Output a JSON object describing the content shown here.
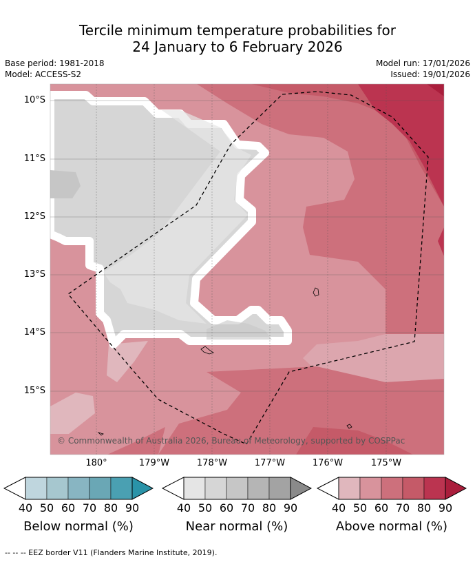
{
  "title_line1": "Tercile minimum temperature probabilities for",
  "title_line2": "24 January to 6 February 2026",
  "base_period": "Base period: 1981-2018",
  "model": "Model: ACCESS-S2",
  "model_run": "Model run: 17/01/2026",
  "issued": "Issued: 19/01/2026",
  "latitudes": [
    "10°S",
    "11°S",
    "12°S",
    "13°S",
    "14°S",
    "15°S"
  ],
  "longitudes": [
    "180°",
    "179°W",
    "178°W",
    "177°W",
    "176°W",
    "175°W"
  ],
  "copyright": "© Commonwealth of Australia 2026, Bureau of Meteorology, supported by COSPPac",
  "colorbars": [
    {
      "label": "Below normal (%)",
      "ticks": [
        "40",
        "50",
        "60",
        "70",
        "80",
        "90"
      ],
      "colors": [
        "#bfd6de",
        "#a6c7cf",
        "#88b5c2",
        "#6aa7b5",
        "#4aa0b2",
        "#2a93a8"
      ]
    },
    {
      "label": "Near normal (%)",
      "ticks": [
        "40",
        "50",
        "60",
        "70",
        "80",
        "90"
      ],
      "colors": [
        "#e5e5e5",
        "#d6d6d6",
        "#c6c6c6",
        "#b5b5b5",
        "#a3a3a3",
        "#8a8a8a"
      ]
    },
    {
      "label": "Above normal (%)",
      "ticks": [
        "40",
        "50",
        "60",
        "70",
        "80",
        "90"
      ],
      "colors": [
        "#e0b7bd",
        "#d8939c",
        "#cd707c",
        "#c55a68",
        "#bb3450",
        "#aa1e3c"
      ]
    }
  ],
  "legend_categories": {
    "near_normal": 50,
    "above_normal": [
      40,
      50,
      60,
      70,
      80
    ]
  },
  "footer": "--  --  -- EEZ border V11 (Flanders Marine Institute, 2019)."
}
